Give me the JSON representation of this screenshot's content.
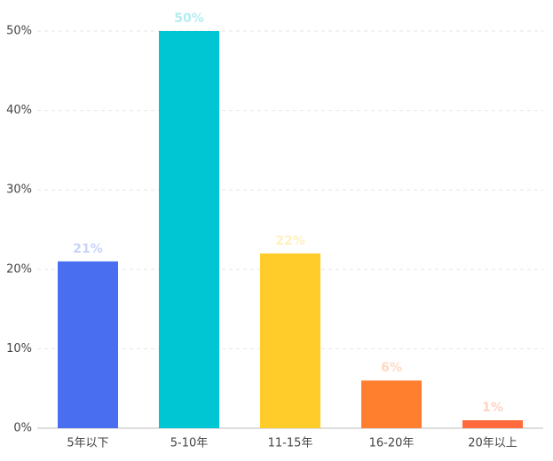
{
  "chart_data": {
    "type": "bar",
    "categories": [
      "5年以下",
      "5-10年",
      "11-15年",
      "16-20年",
      "20年以上"
    ],
    "values": [
      21,
      50,
      22,
      6,
      1
    ],
    "value_labels": [
      "21%",
      "50%",
      "22%",
      "6%",
      "1%"
    ],
    "colors": [
      "#4a6ef0",
      "#00c5d2",
      "#ffcc29",
      "#ff7f2f",
      "#ff6b3d"
    ],
    "ylim": [
      0,
      50
    ],
    "yticks": [
      {
        "value": 0,
        "label": "0%"
      },
      {
        "value": 10,
        "label": "10%"
      },
      {
        "value": 20,
        "label": "20%"
      },
      {
        "value": 30,
        "label": "30%"
      },
      {
        "value": 40,
        "label": "40%"
      },
      {
        "value": 50,
        "label": "50%"
      }
    ],
    "grid": true
  }
}
